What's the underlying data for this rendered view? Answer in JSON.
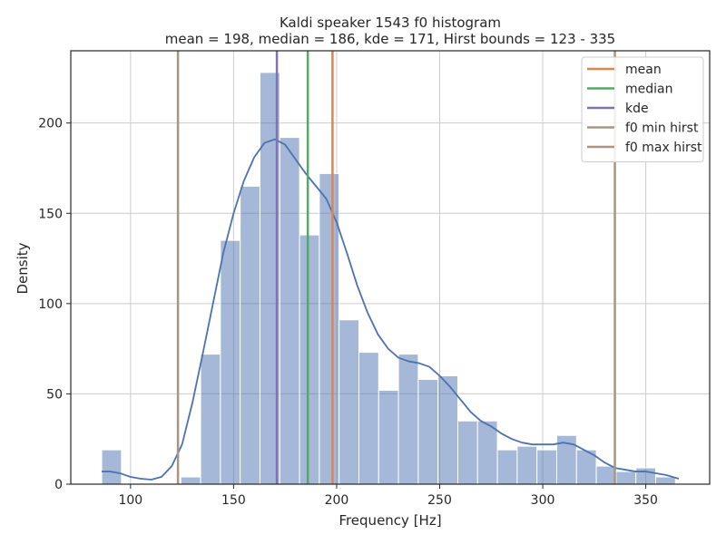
{
  "chart_data": {
    "type": "bar",
    "title": "Kaldi speaker 1543 f0 histogram",
    "subtitle": "mean = 198, median = 186, kde = 171, Hirst bounds = 123 - 335",
    "xlabel": "Frequency [Hz]",
    "ylabel": "Density",
    "xlim": [
      71,
      381
    ],
    "ylim": [
      0,
      240
    ],
    "xticks": [
      "100",
      "150",
      "200",
      "250",
      "300",
      "350"
    ],
    "xtick_values": [
      100,
      150,
      200,
      250,
      300,
      350
    ],
    "yticks": [
      "0",
      "50",
      "100",
      "150",
      "200"
    ],
    "ytick_values": [
      0,
      50,
      100,
      150,
      200
    ],
    "grid": true,
    "legend_position": "top-right",
    "bar_color": "#4c72b0",
    "bins": [
      {
        "x0": 86,
        "x1": 95.6,
        "count": 19
      },
      {
        "x0": 95.6,
        "x1": 105.2,
        "count": 0
      },
      {
        "x0": 105.2,
        "x1": 114.8,
        "count": 0
      },
      {
        "x0": 114.8,
        "x1": 124.4,
        "count": 0
      },
      {
        "x0": 124.4,
        "x1": 134.0,
        "count": 4
      },
      {
        "x0": 134.0,
        "x1": 143.6,
        "count": 72
      },
      {
        "x0": 143.6,
        "x1": 153.2,
        "count": 135
      },
      {
        "x0": 153.2,
        "x1": 162.8,
        "count": 165
      },
      {
        "x0": 162.8,
        "x1": 172.4,
        "count": 228
      },
      {
        "x0": 172.4,
        "x1": 182.0,
        "count": 192
      },
      {
        "x0": 182.0,
        "x1": 191.6,
        "count": 138
      },
      {
        "x0": 191.6,
        "x1": 201.2,
        "count": 172
      },
      {
        "x0": 201.2,
        "x1": 210.8,
        "count": 91
      },
      {
        "x0": 210.8,
        "x1": 220.4,
        "count": 73
      },
      {
        "x0": 220.4,
        "x1": 230.0,
        "count": 52
      },
      {
        "x0": 230.0,
        "x1": 239.6,
        "count": 72
      },
      {
        "x0": 239.6,
        "x1": 249.2,
        "count": 58
      },
      {
        "x0": 249.2,
        "x1": 258.8,
        "count": 60
      },
      {
        "x0": 258.8,
        "x1": 268.4,
        "count": 35
      },
      {
        "x0": 268.4,
        "x1": 278.0,
        "count": 35
      },
      {
        "x0": 278.0,
        "x1": 287.6,
        "count": 19
      },
      {
        "x0": 287.6,
        "x1": 297.2,
        "count": 21
      },
      {
        "x0": 297.2,
        "x1": 306.8,
        "count": 19
      },
      {
        "x0": 306.8,
        "x1": 316.4,
        "count": 27
      },
      {
        "x0": 316.4,
        "x1": 326.0,
        "count": 19
      },
      {
        "x0": 326.0,
        "x1": 335.6,
        "count": 10
      },
      {
        "x0": 335.6,
        "x1": 345.2,
        "count": 7
      },
      {
        "x0": 345.2,
        "x1": 354.8,
        "count": 9
      },
      {
        "x0": 354.8,
        "x1": 364.4,
        "count": 4
      }
    ],
    "kde": {
      "color": "#4c72b0",
      "points": [
        [
          86,
          7
        ],
        [
          90,
          7
        ],
        [
          95,
          6
        ],
        [
          100,
          4
        ],
        [
          105,
          3
        ],
        [
          110,
          2.5
        ],
        [
          115,
          4
        ],
        [
          120,
          10
        ],
        [
          125,
          22
        ],
        [
          130,
          45
        ],
        [
          135,
          72
        ],
        [
          140,
          100
        ],
        [
          145,
          128
        ],
        [
          150,
          150
        ],
        [
          155,
          168
        ],
        [
          160,
          181
        ],
        [
          165,
          189
        ],
        [
          170,
          191
        ],
        [
          175,
          188
        ],
        [
          180,
          180
        ],
        [
          185,
          172
        ],
        [
          190,
          165
        ],
        [
          195,
          158
        ],
        [
          200,
          145
        ],
        [
          205,
          128
        ],
        [
          210,
          110
        ],
        [
          215,
          95
        ],
        [
          220,
          83
        ],
        [
          225,
          75
        ],
        [
          230,
          70
        ],
        [
          235,
          68
        ],
        [
          240,
          67
        ],
        [
          245,
          65
        ],
        [
          250,
          60
        ],
        [
          255,
          54
        ],
        [
          260,
          47
        ],
        [
          265,
          40
        ],
        [
          270,
          35
        ],
        [
          275,
          32
        ],
        [
          280,
          28
        ],
        [
          285,
          25
        ],
        [
          290,
          23
        ],
        [
          295,
          22
        ],
        [
          300,
          22
        ],
        [
          305,
          22
        ],
        [
          310,
          23
        ],
        [
          315,
          22
        ],
        [
          320,
          19
        ],
        [
          325,
          16
        ],
        [
          330,
          12
        ],
        [
          335,
          9
        ],
        [
          340,
          8
        ],
        [
          345,
          7
        ],
        [
          350,
          7
        ],
        [
          355,
          6
        ],
        [
          360,
          5
        ],
        [
          366,
          3
        ]
      ]
    },
    "vlines": [
      {
        "name": "f0 min hirst",
        "x": 123,
        "color": "#a89582"
      },
      {
        "name": "kde",
        "x": 171,
        "color": "#8172b3"
      },
      {
        "name": "median",
        "x": 186,
        "color": "#55a868"
      },
      {
        "name": "mean",
        "x": 198,
        "color": "#dd8452"
      },
      {
        "name": "f0 max hirst",
        "x": 335,
        "color": "#a89582"
      }
    ],
    "legend": [
      {
        "label": "mean",
        "color": "#dd8452"
      },
      {
        "label": "median",
        "color": "#55a868"
      },
      {
        "label": "kde",
        "color": "#8172b3"
      },
      {
        "label": "f0 min hirst",
        "color": "#a89582"
      },
      {
        "label": "f0 max hirst",
        "color": "#a89582"
      }
    ]
  }
}
